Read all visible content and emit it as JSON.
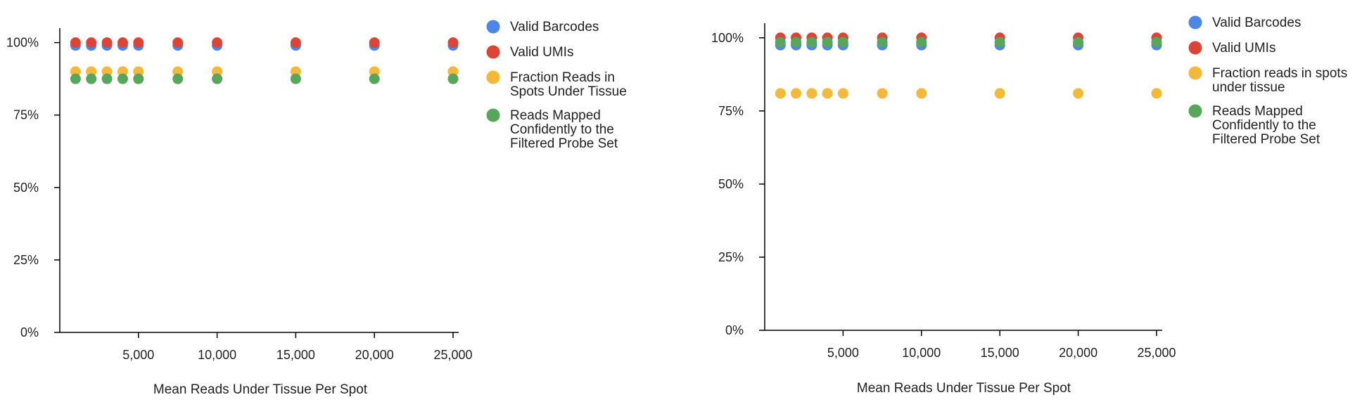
{
  "chart_data": [
    {
      "type": "scatter",
      "title": "",
      "xlabel": "Mean Reads Under Tissue Per Spot",
      "ylabel": "",
      "xlim": [
        0,
        25000
      ],
      "ylim": [
        0,
        105
      ],
      "x_ticks": [
        "5,000",
        "10,000",
        "15,000",
        "20,000",
        "25,000"
      ],
      "y_ticks": [
        "0%",
        "25%",
        "50%",
        "75%",
        "100%"
      ],
      "legend_position": "right",
      "x": [
        1000,
        2000,
        3000,
        4000,
        5000,
        7500,
        10000,
        15000,
        20000,
        25000
      ],
      "series": [
        {
          "name": "Valid Barcodes",
          "color": "#4E86E8",
          "label_lines": [
            "Valid Barcodes"
          ],
          "values": [
            99,
            99,
            99,
            99,
            99,
            99,
            99,
            99,
            99,
            99
          ]
        },
        {
          "name": "Valid UMIs",
          "color": "#DB4437",
          "label_lines": [
            "Valid UMIs"
          ],
          "values": [
            100,
            100,
            100,
            100,
            100,
            100,
            100,
            100,
            100,
            100
          ]
        },
        {
          "name": "Fraction Reads in Spots Under Tissue",
          "color": "#F4B93A",
          "label_lines": [
            "Fraction Reads in",
            "Spots Under Tissue"
          ],
          "values": [
            90,
            90,
            90,
            90,
            90,
            90,
            90,
            90,
            90,
            90
          ]
        },
        {
          "name": "Reads Mapped Confidently to the Filtered Probe Set",
          "color": "#57A65B",
          "label_lines": [
            "Reads Mapped",
            "Confidently to the",
            "Filtered Probe Set"
          ],
          "values": [
            87.5,
            87.5,
            87.5,
            87.5,
            87.5,
            87.5,
            87.5,
            87.5,
            87.5,
            87.5
          ]
        }
      ]
    },
    {
      "type": "scatter",
      "title": "",
      "xlabel": "Mean Reads Under Tissue Per Spot",
      "ylabel": "",
      "xlim": [
        0,
        25000
      ],
      "ylim": [
        0,
        105
      ],
      "x_ticks": [
        "5,000",
        "10,000",
        "15,000",
        "20,000",
        "25,000"
      ],
      "y_ticks": [
        "0%",
        "25%",
        "50%",
        "75%",
        "100%"
      ],
      "legend_position": "right",
      "x": [
        1000,
        2000,
        3000,
        4000,
        5000,
        7500,
        10000,
        15000,
        20000,
        25000
      ],
      "series": [
        {
          "name": "Valid Barcodes",
          "color": "#4E86E8",
          "label_lines": [
            "Valid Barcodes"
          ],
          "values": [
            97.5,
            97.5,
            97.5,
            97.5,
            97.5,
            97.5,
            97.5,
            97.5,
            97.5,
            97.5
          ]
        },
        {
          "name": "Valid UMIs",
          "color": "#DB4437",
          "label_lines": [
            "Valid UMIs"
          ],
          "values": [
            100,
            100,
            100,
            100,
            100,
            100,
            100,
            100,
            100,
            100
          ]
        },
        {
          "name": "Fraction reads in spots under tissue",
          "color": "#F4B93A",
          "label_lines": [
            "Fraction reads in spots",
            "under tissue"
          ],
          "values": [
            81,
            81,
            81,
            81,
            81,
            81,
            81,
            81,
            81,
            81
          ]
        },
        {
          "name": "Reads Mapped Confidently to the Filtered Probe Set",
          "color": "#57A65B",
          "label_lines": [
            "Reads Mapped",
            "Confidently to the",
            "Filtered Probe Set"
          ],
          "values": [
            98.5,
            98.5,
            98.5,
            98.5,
            98.5,
            98.5,
            98.5,
            98.5,
            98.5,
            98.5
          ]
        }
      ]
    }
  ]
}
